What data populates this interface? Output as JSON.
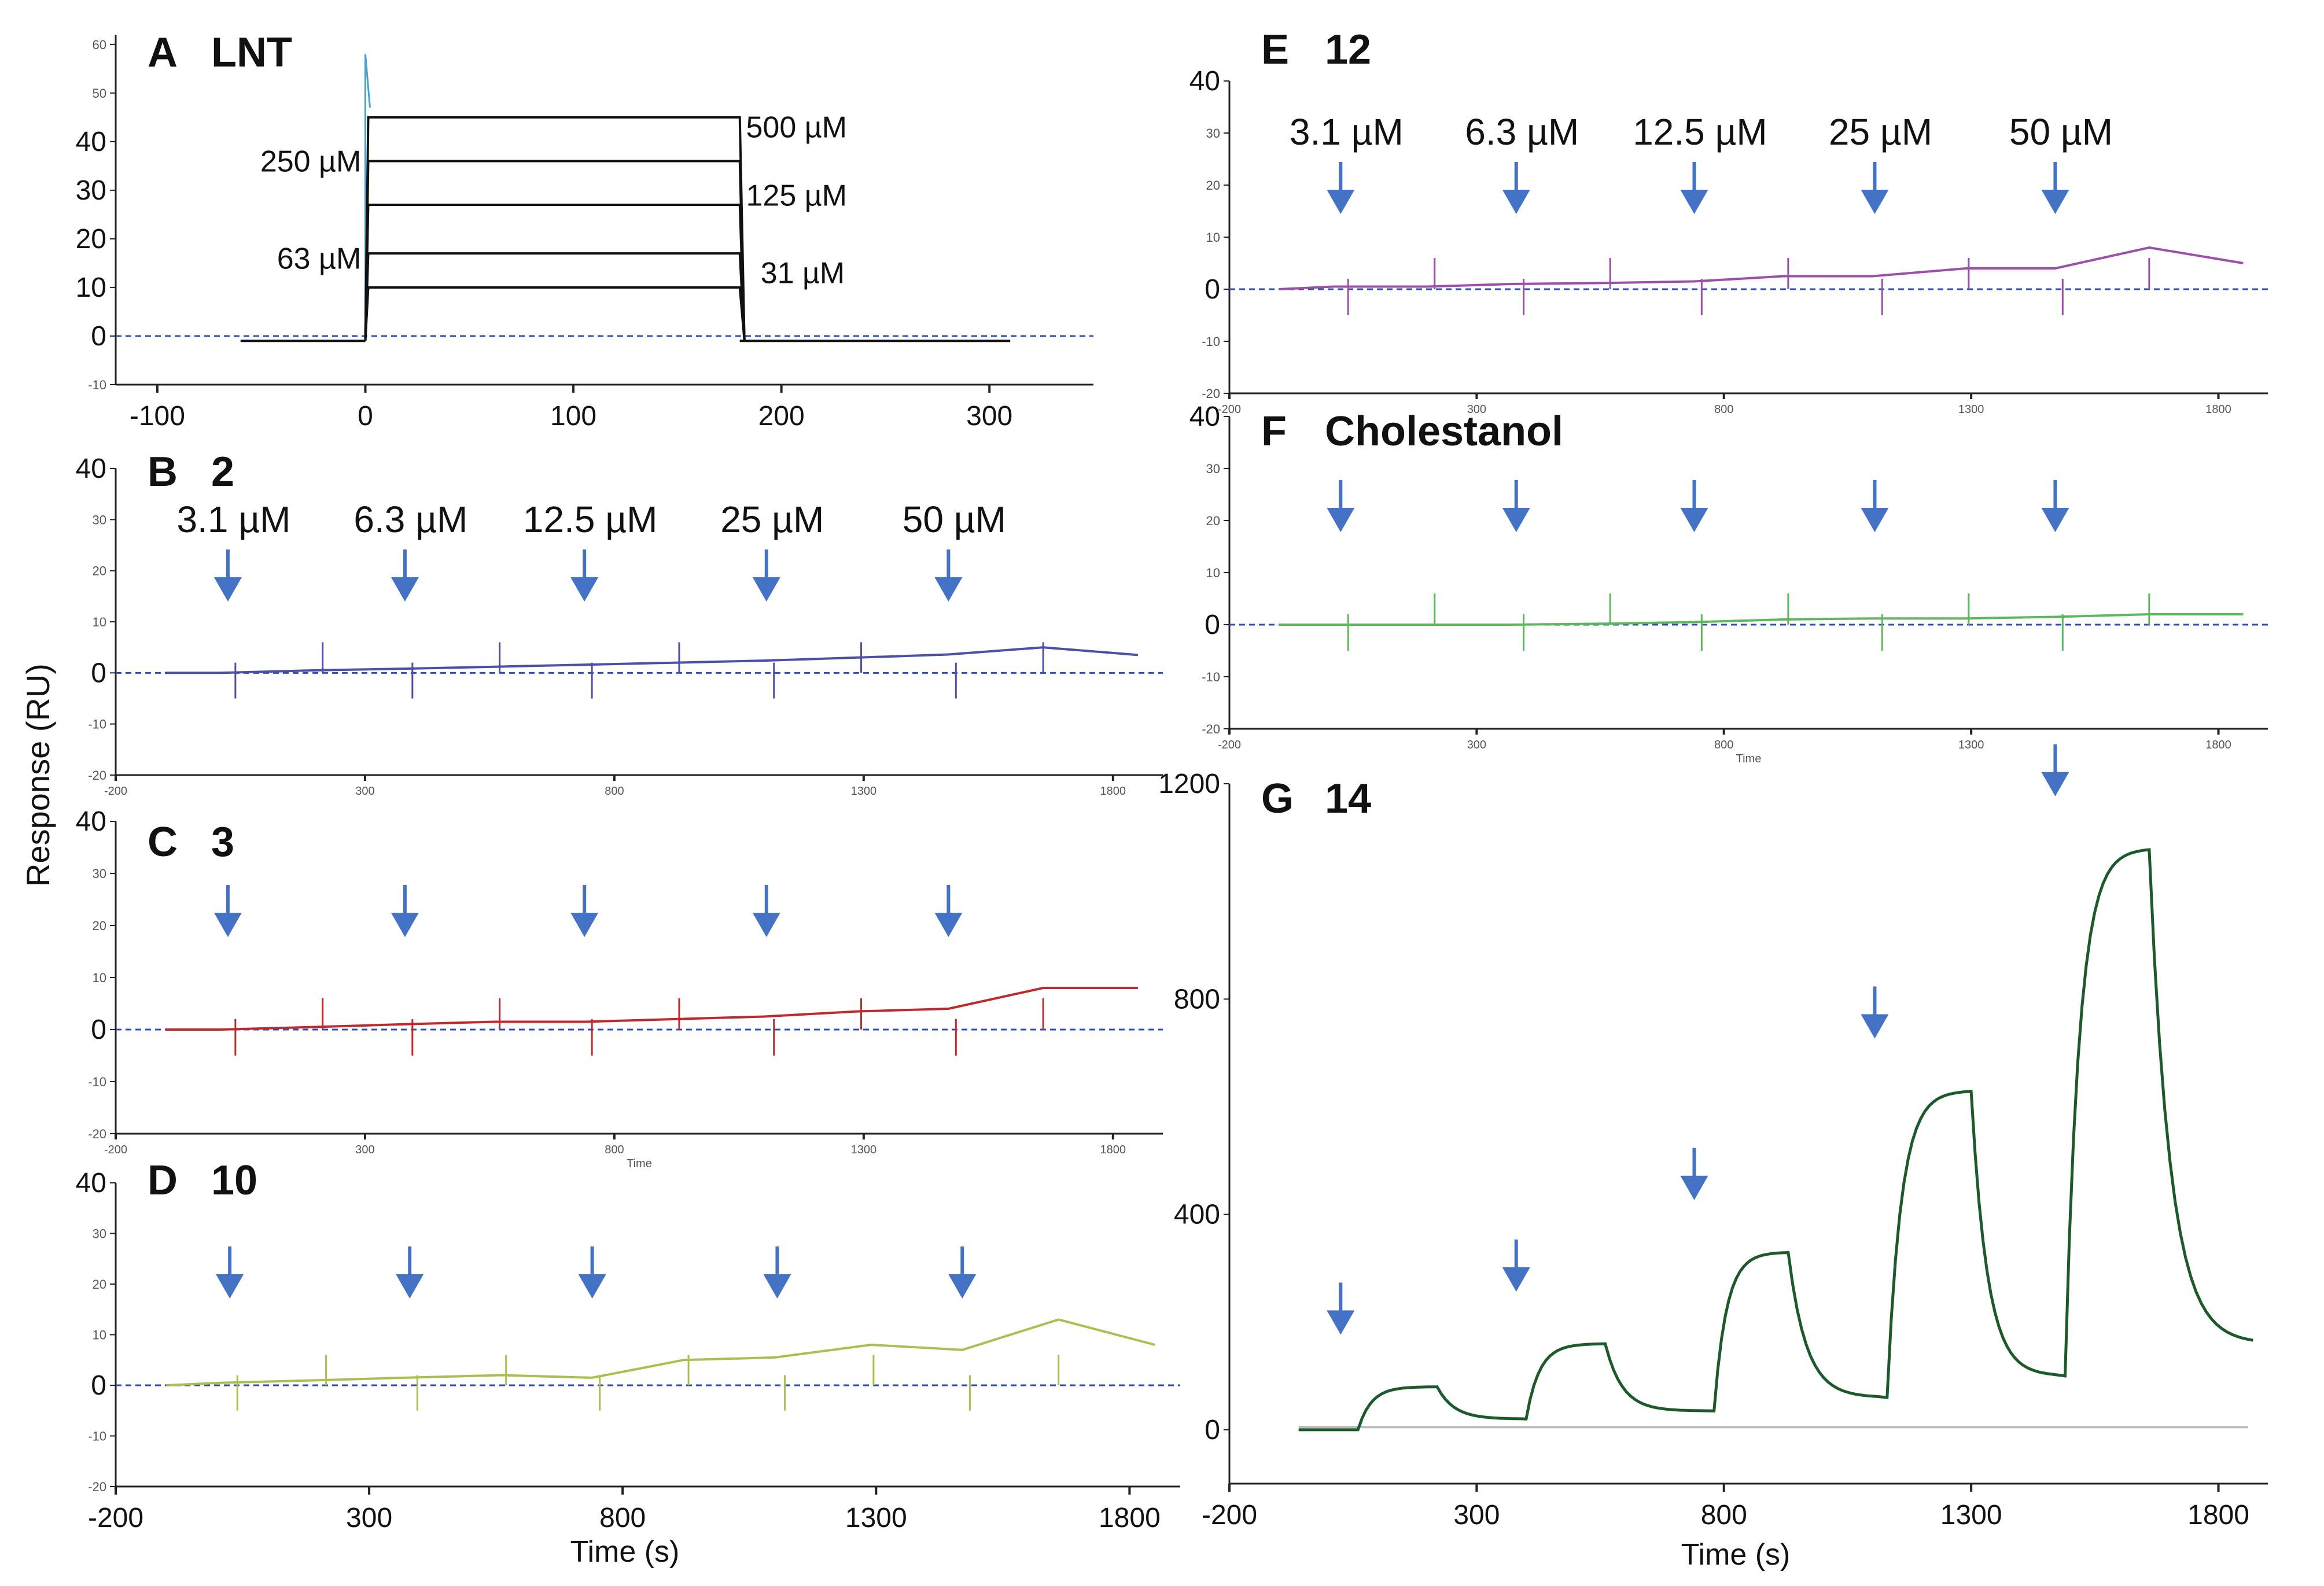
{
  "figure": {
    "ylabel_shared": "Response (RU)",
    "xlabel_left": "Time (s)",
    "xlabel_right": "Time (s)",
    "arrow_color": "#4472C4",
    "baseline_color": "#2E4FB8"
  },
  "chart_data": [
    {
      "id": "A",
      "panel_letter": "A",
      "compound": "LNT",
      "type": "line",
      "line_color": "#111111",
      "xlim": [
        -120,
        350
      ],
      "ylim": [
        -10,
        62
      ],
      "x_ticks": [
        -100,
        0,
        100,
        200,
        300
      ],
      "y_ticks": [
        -10,
        0,
        10,
        20,
        30,
        40,
        50,
        60
      ],
      "y_ticks_big": [
        0,
        10,
        20,
        30,
        40
      ],
      "injection_start": 0,
      "injection_end": 180,
      "series": [
        {
          "name": "500 µM",
          "plateau": 45
        },
        {
          "name": "250 µM",
          "plateau": 36
        },
        {
          "name": "125 µM",
          "plateau": 27
        },
        {
          "name": "63 µM",
          "plateau": 17
        },
        {
          "name": "31 µM",
          "plateau": 10
        }
      ],
      "annotations": [
        {
          "text": "500 µM",
          "x": 183,
          "y": 43
        },
        {
          "text": "250 µM",
          "x": -2,
          "y": 36,
          "anchor": "end"
        },
        {
          "text": "125 µM",
          "x": 183,
          "y": 29
        },
        {
          "text": "63 µM",
          "x": -2,
          "y": 16,
          "anchor": "end"
        },
        {
          "text": "31 µM",
          "x": 190,
          "y": 13
        }
      ]
    },
    {
      "id": "B",
      "panel_letter": "B",
      "compound": "2",
      "type": "line",
      "line_color": "#4B4FA8",
      "xlim": [
        -200,
        1900
      ],
      "ylim": [
        -20,
        40
      ],
      "x_ticks_small": [
        "-200",
        "300",
        "800",
        "1300",
        "1800"
      ],
      "y_ticks": [
        -20,
        -10,
        0,
        10,
        20,
        30,
        40
      ],
      "y_ticks_big": [
        0,
        40
      ],
      "arrow_x": [
        25,
        380,
        740,
        1105,
        1470
      ],
      "concentrations": [
        "3.1 µM",
        "6.3 µM",
        "12.5 µM",
        "25 µM",
        "50 µM"
      ],
      "x_values": [
        -100,
        10,
        200,
        370,
        560,
        740,
        920,
        1100,
        1290,
        1470,
        1660,
        1850
      ],
      "y_values": [
        0,
        0,
        0.5,
        0.8,
        1.2,
        1.6,
        2.0,
        2.4,
        3.0,
        3.6,
        5.0,
        3.5
      ]
    },
    {
      "id": "C",
      "panel_letter": "C",
      "compound": "3",
      "type": "line",
      "line_color": "#C0282C",
      "xlim": [
        -200,
        1900
      ],
      "ylim": [
        -20,
        40
      ],
      "x_ticks_small": [
        "-200",
        "300",
        "800",
        "1300",
        "1800"
      ],
      "xlabel_small": "Time",
      "y_ticks": [
        -20,
        -10,
        0,
        10,
        20,
        30,
        40
      ],
      "y_ticks_big": [
        0,
        40
      ],
      "arrow_x": [
        25,
        380,
        740,
        1105,
        1470
      ],
      "x_values": [
        -100,
        10,
        200,
        370,
        560,
        740,
        920,
        1100,
        1290,
        1470,
        1660,
        1850
      ],
      "y_values": [
        0,
        0,
        0.5,
        1.0,
        1.5,
        1.5,
        2.0,
        2.5,
        3.5,
        4.0,
        8.0,
        8.0
      ]
    },
    {
      "id": "D",
      "panel_letter": "D",
      "compound": "10",
      "type": "line",
      "line_color": "#A8C050",
      "xlim": [
        -200,
        1900
      ],
      "ylim": [
        -20,
        40
      ],
      "x_ticks": [
        -200,
        300,
        800,
        1300,
        1800
      ],
      "y_ticks": [
        -20,
        -10,
        0,
        10,
        20,
        30,
        40
      ],
      "y_ticks_big": [
        0,
        40
      ],
      "arrow_x": [
        25,
        380,
        740,
        1105,
        1470
      ],
      "x_values": [
        -100,
        10,
        200,
        370,
        560,
        740,
        920,
        1100,
        1290,
        1470,
        1660,
        1850
      ],
      "y_values": [
        0,
        0.5,
        1.0,
        1.5,
        2.0,
        1.5,
        5.0,
        5.5,
        8.0,
        7.0,
        13.0,
        8.0
      ]
    },
    {
      "id": "E",
      "panel_letter": "E",
      "compound": "12",
      "type": "line",
      "line_color": "#9B4FA8",
      "xlim": [
        -200,
        1900
      ],
      "ylim": [
        -20,
        40
      ],
      "x_ticks_small": [
        "-200",
        "300",
        "800",
        "1300",
        "1800"
      ],
      "y_ticks": [
        -20,
        -10,
        0,
        10,
        20,
        30,
        40
      ],
      "y_ticks_big": [
        0,
        40
      ],
      "arrow_x": [
        25,
        380,
        740,
        1105,
        1470
      ],
      "concentrations": [
        "3.1 µM",
        "6.3 µM",
        "12.5 µM",
        "25 µM",
        "50 µM"
      ],
      "x_values": [
        -100,
        10,
        200,
        370,
        560,
        740,
        920,
        1100,
        1290,
        1470,
        1660,
        1850
      ],
      "y_values": [
        0,
        0.5,
        0.5,
        1.0,
        1.2,
        1.5,
        2.5,
        2.5,
        4.0,
        4.0,
        8.0,
        5.0
      ]
    },
    {
      "id": "F",
      "panel_letter": "F",
      "compound": "Cholestanol",
      "type": "line",
      "line_color": "#5DB85D",
      "xlim": [
        -200,
        1900
      ],
      "ylim": [
        -20,
        40
      ],
      "x_ticks_small": [
        "-200",
        "300",
        "800",
        "1300",
        "1800"
      ],
      "xlabel_small": "Time",
      "y_ticks": [
        -20,
        -10,
        0,
        10,
        20,
        30,
        40
      ],
      "y_ticks_big": [
        0,
        40
      ],
      "arrow_x": [
        25,
        380,
        740,
        1105,
        1470
      ],
      "x_values": [
        -100,
        10,
        200,
        370,
        560,
        740,
        920,
        1100,
        1290,
        1470,
        1660,
        1850
      ],
      "y_values": [
        0,
        0,
        0,
        0,
        0.2,
        0.5,
        1.0,
        1.2,
        1.2,
        1.5,
        2.0,
        2.0
      ]
    },
    {
      "id": "G",
      "panel_letter": "G",
      "compound": "14",
      "type": "line",
      "line_color": "#1D5A2B",
      "reference_color": "#BBBBBB",
      "xlim": [
        -200,
        1900
      ],
      "ylim": [
        -100,
        1200
      ],
      "x_ticks": [
        -200,
        300,
        800,
        1300,
        1800
      ],
      "y_ticks": [
        0,
        400,
        800,
        1200
      ],
      "arrow_x": [
        25,
        380,
        740,
        1105,
        1470
      ],
      "injections": [
        {
          "start": 60,
          "end": 220,
          "plateau": 80,
          "end_dissociation": 20
        },
        {
          "start": 400,
          "end": 560,
          "plateau": 160,
          "end_dissociation": 35
        },
        {
          "start": 780,
          "end": 930,
          "plateau": 330,
          "end_dissociation": 60
        },
        {
          "start": 1130,
          "end": 1300,
          "plateau": 630,
          "end_dissociation": 100
        },
        {
          "start": 1490,
          "end": 1660,
          "plateau": 1080,
          "end_dissociation": 160
        }
      ]
    }
  ]
}
